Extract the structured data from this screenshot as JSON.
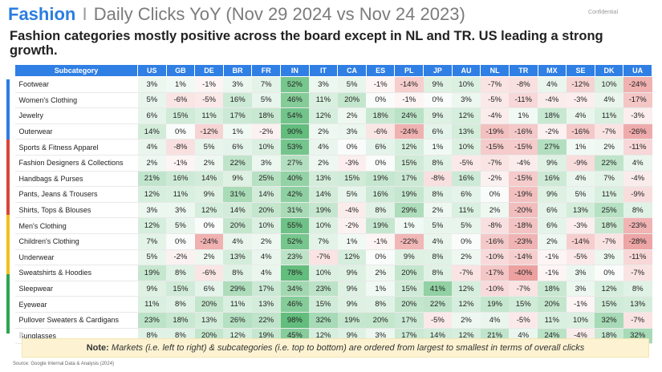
{
  "header": {
    "brand": "Fashion",
    "separator": "I",
    "title": "Daily Clicks YoY (Nov 29 2024 vs Nov 24 2023)",
    "confidential": "Confidential",
    "subtitle": "Fashion categories mostly positive across the board except in NL and TR. US leading a strong growth."
  },
  "table": {
    "header_label": "Subcategory",
    "markets": [
      "US",
      "GB",
      "DE",
      "BR",
      "FR",
      "IN",
      "IT",
      "CA",
      "ES",
      "PL",
      "JP",
      "AU",
      "NL",
      "TR",
      "MX",
      "SE",
      "DK",
      "UA"
    ],
    "rows": [
      {
        "name": "Footwear",
        "values": [
          3,
          1,
          -1,
          3,
          7,
          52,
          3,
          5,
          -1,
          -14,
          9,
          10,
          -7,
          -8,
          4,
          -12,
          10,
          -24
        ]
      },
      {
        "name": "Women's Clothing",
        "values": [
          5,
          -6,
          -5,
          16,
          5,
          46,
          11,
          20,
          0,
          -1,
          0,
          3,
          -5,
          -11,
          -4,
          -3,
          4,
          -17
        ]
      },
      {
        "name": "Jewelry",
        "values": [
          6,
          15,
          11,
          17,
          18,
          54,
          12,
          2,
          18,
          24,
          9,
          12,
          -4,
          1,
          18,
          4,
          11,
          -3
        ]
      },
      {
        "name": "Outerwear",
        "values": [
          14,
          0,
          -12,
          1,
          -2,
          90,
          2,
          3,
          -6,
          -24,
          6,
          13,
          -19,
          -16,
          -2,
          -16,
          -7,
          -26
        ]
      },
      {
        "name": "Sports & Fitness Apparel",
        "values": [
          4,
          -8,
          5,
          6,
          10,
          53,
          4,
          0,
          6,
          12,
          1,
          10,
          -15,
          -15,
          27,
          1,
          2,
          -11
        ]
      },
      {
        "name": "Fashion Designers & Collections",
        "values": [
          2,
          -1,
          2,
          22,
          3,
          27,
          2,
          -3,
          0,
          15,
          8,
          -5,
          -7,
          -4,
          9,
          -9,
          22,
          4
        ]
      },
      {
        "name": "Handbags & Purses",
        "values": [
          21,
          16,
          14,
          9,
          25,
          40,
          13,
          15,
          19,
          17,
          -8,
          16,
          -2,
          -15,
          16,
          4,
          7,
          -4
        ]
      },
      {
        "name": "Pants, Jeans & Trousers",
        "values": [
          12,
          11,
          9,
          31,
          14,
          42,
          14,
          5,
          16,
          19,
          8,
          6,
          0,
          -19,
          9,
          5,
          11,
          -9
        ]
      },
      {
        "name": "Shirts, Tops & Blouses",
        "values": [
          3,
          3,
          12,
          14,
          20,
          31,
          19,
          -4,
          8,
          29,
          2,
          11,
          2,
          -20,
          6,
          13,
          25,
          8
        ]
      },
      {
        "name": "Men's Clothing",
        "values": [
          12,
          5,
          0,
          20,
          10,
          55,
          10,
          -2,
          19,
          1,
          5,
          5,
          -8,
          -18,
          6,
          -3,
          18,
          -23
        ]
      },
      {
        "name": "Children's Clothing",
        "values": [
          7,
          0,
          -24,
          4,
          2,
          52,
          7,
          1,
          -1,
          -22,
          4,
          0,
          -16,
          -23,
          2,
          -14,
          -7,
          -28
        ]
      },
      {
        "name": "Underwear",
        "values": [
          5,
          -2,
          2,
          13,
          4,
          23,
          -7,
          12,
          0,
          9,
          8,
          2,
          -10,
          -14,
          -1,
          -5,
          3,
          -11
        ]
      },
      {
        "name": "Sweatshirts & Hoodies",
        "values": [
          19,
          8,
          -6,
          8,
          4,
          78,
          10,
          9,
          2,
          20,
          8,
          -7,
          -17,
          -40,
          -1,
          3,
          0,
          -7
        ]
      },
      {
        "name": "Sleepwear",
        "values": [
          9,
          15,
          6,
          29,
          17,
          34,
          23,
          9,
          1,
          15,
          41,
          12,
          -10,
          -7,
          18,
          3,
          12,
          8
        ]
      },
      {
        "name": "Eyewear",
        "values": [
          11,
          8,
          20,
          11,
          13,
          46,
          15,
          9,
          8,
          20,
          22,
          12,
          19,
          15,
          20,
          -1,
          15,
          13
        ]
      },
      {
        "name": "Pullover Sweaters & Cardigans",
        "values": [
          23,
          18,
          13,
          26,
          22,
          98,
          32,
          19,
          20,
          17,
          -5,
          2,
          4,
          -5,
          11,
          10,
          32,
          -7
        ]
      },
      {
        "name": "Sunglasses",
        "values": [
          8,
          8,
          20,
          12,
          19,
          45,
          12,
          9,
          3,
          17,
          14,
          12,
          21,
          4,
          24,
          -4,
          18,
          32
        ]
      }
    ]
  },
  "colors": {
    "header_blue": "#2f7fe4",
    "brand_blue": "#2a7de1",
    "positive": "#3fae5f",
    "negative": "#e06060",
    "side_blue": "#2a7de1",
    "side_red": "#d9453a",
    "side_yellow": "#f2c01c",
    "side_green": "#2ea44f"
  },
  "note": {
    "label": "Note:",
    "text": "Markets (i.e. left to right) & subcategories (i.e. top to bottom) are ordered from largest to smallest in terms of overall clicks"
  },
  "source": "Source: Google Internal Data & Analysis (2024)"
}
